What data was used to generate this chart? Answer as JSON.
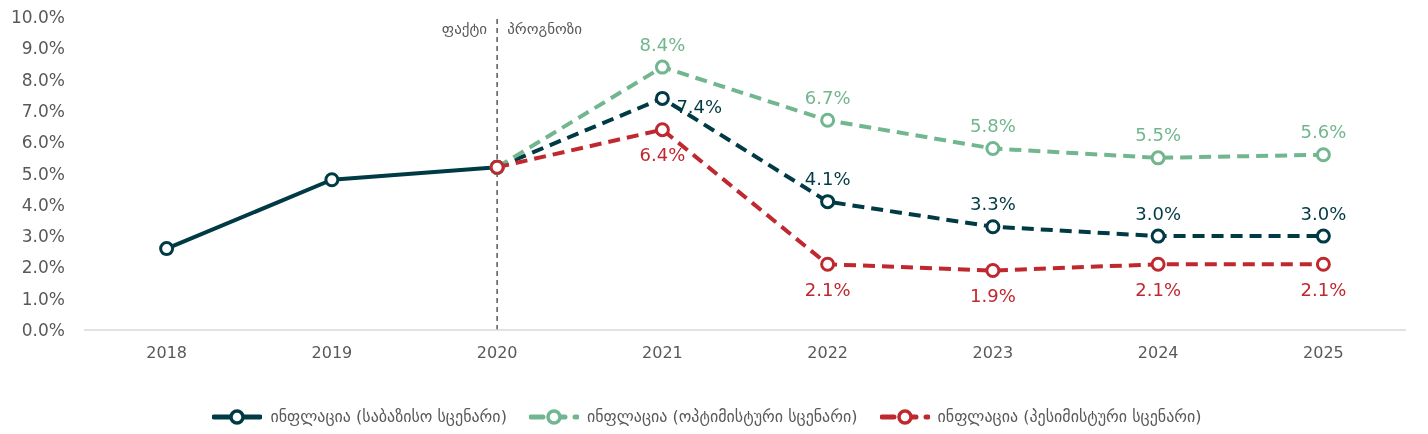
{
  "chart_data": {
    "type": "line",
    "categories": [
      "2018",
      "2019",
      "2020",
      "2021",
      "2022",
      "2023",
      "2024",
      "2025"
    ],
    "series": [
      {
        "name": "ინფლაცია (საბაზისო სცენარი)",
        "color": "#003a45",
        "line_style": "solid",
        "values": [
          2.6,
          4.8,
          5.2,
          null,
          null,
          null,
          null,
          null
        ]
      },
      {
        "color": "#003a45",
        "line_style": "dashed",
        "values": [
          null,
          null,
          5.2,
          7.4,
          4.1,
          3.3,
          3.0,
          3.0
        ],
        "value_labels": [
          null,
          null,
          null,
          "7.4%",
          "4.1%",
          "3.3%",
          "3.0%",
          "3.0%"
        ]
      },
      {
        "name": "ინფლაცია (ოპტიმისტური სცენარი)",
        "color": "#72b68f",
        "line_style": "dashed",
        "values": [
          null,
          null,
          5.2,
          8.4,
          6.7,
          5.8,
          5.5,
          5.6
        ],
        "value_labels": [
          null,
          null,
          null,
          "8.4%",
          "6.7%",
          "5.8%",
          "5.5%",
          "5.6%"
        ]
      },
      {
        "name": "ინფლაცია (პესიმისტური სცენარი)",
        "color": "#c0282f",
        "line_style": "dashed",
        "values": [
          null,
          null,
          5.2,
          6.4,
          2.1,
          1.9,
          2.1,
          2.1
        ],
        "value_labels": [
          null,
          null,
          null,
          "6.4%",
          "2.1%",
          "1.9%",
          "2.1%",
          "2.1%"
        ]
      }
    ],
    "ylim": [
      0,
      10
    ],
    "yticks": [
      {
        "value": 0,
        "label": "0.0%"
      },
      {
        "value": 1,
        "label": "1.0%"
      },
      {
        "value": 2,
        "label": "2.0%"
      },
      {
        "value": 3,
        "label": "3.0%"
      },
      {
        "value": 4,
        "label": "4.0%"
      },
      {
        "value": 5,
        "label": "5.0%"
      },
      {
        "value": 6,
        "label": "6.0%"
      },
      {
        "value": 7,
        "label": "7.0%"
      },
      {
        "value": 8,
        "label": "8.0%"
      },
      {
        "value": 9,
        "label": "9.0%"
      },
      {
        "value": 10,
        "label": "10.0%"
      }
    ],
    "marker": "circle",
    "legend": "bottom",
    "ref_lines": [
      {
        "axis": "x",
        "value": "2020",
        "color": "#595959",
        "line_style": "dashed"
      }
    ],
    "annotations": [
      {
        "text": "ფაქტი",
        "x": "2020"
      },
      {
        "text": "პროგნოზი",
        "x": "2020"
      }
    ]
  }
}
